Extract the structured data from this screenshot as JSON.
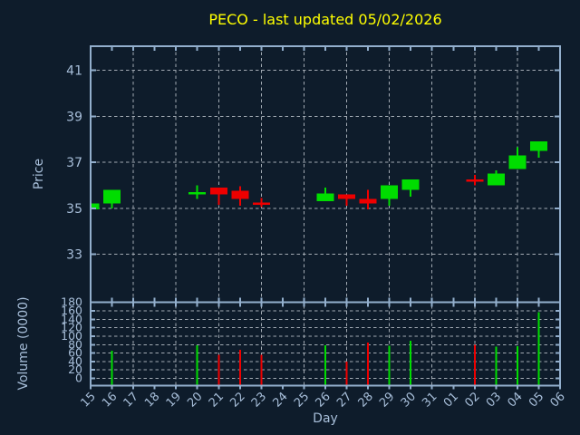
{
  "colors": {
    "background": "#0e1c2b",
    "border": "#93afcd",
    "grid": "#bcc3cb",
    "label": "#a7bed9",
    "title": "#ffff00",
    "up": "#00dd00",
    "down": "#ee0000"
  },
  "chart_data": [
    {
      "type": "candlestick",
      "panel": "price",
      "title": "PECO - last updated 05/02/2026",
      "xlabel": "Day",
      "ylabel": "Price",
      "ylim": [
        30.9,
        42.05
      ],
      "yticks": [
        33,
        35,
        37,
        39,
        41
      ],
      "grid": true,
      "legend": "none",
      "x_categories": [
        "15",
        "16",
        "17",
        "18",
        "19",
        "20",
        "21",
        "22",
        "23",
        "24",
        "25",
        "26",
        "27",
        "28",
        "29",
        "30",
        "31",
        "01",
        "02",
        "03",
        "04",
        "05",
        "06"
      ],
      "gridline_days": [
        "17",
        "19",
        "21",
        "23",
        "25",
        "27",
        "29",
        "31",
        "02",
        "04"
      ],
      "candles": [
        {
          "day": "15",
          "open": 34.95,
          "high": 35.2,
          "low": 34.95,
          "close": 35.2,
          "direction": "up"
        },
        {
          "day": "16",
          "open": 35.2,
          "high": 35.8,
          "low": 35.0,
          "close": 35.8,
          "direction": "up"
        },
        {
          "day": "20",
          "open": 35.65,
          "high": 36.0,
          "low": 35.4,
          "close": 35.65,
          "direction": "up"
        },
        {
          "day": "21",
          "open": 35.9,
          "high": 35.9,
          "low": 35.15,
          "close": 35.6,
          "direction": "down"
        },
        {
          "day": "22",
          "open": 35.75,
          "high": 35.95,
          "low": 35.1,
          "close": 35.4,
          "direction": "down"
        },
        {
          "day": "23",
          "open": 35.2,
          "high": 35.45,
          "low": 35.05,
          "close": 35.2,
          "direction": "down"
        },
        {
          "day": "26",
          "open": 35.3,
          "high": 35.9,
          "low": 35.3,
          "close": 35.65,
          "direction": "up"
        },
        {
          "day": "27",
          "open": 35.6,
          "high": 35.6,
          "low": 35.1,
          "close": 35.4,
          "direction": "down"
        },
        {
          "day": "28",
          "open": 35.4,
          "high": 35.8,
          "low": 34.95,
          "close": 35.2,
          "direction": "down"
        },
        {
          "day": "29",
          "open": 35.4,
          "high": 36.0,
          "low": 35.1,
          "close": 36.0,
          "direction": "up"
        },
        {
          "day": "30",
          "open": 35.8,
          "high": 36.25,
          "low": 35.5,
          "close": 36.25,
          "direction": "up"
        },
        {
          "day": "02",
          "open": 36.2,
          "high": 36.45,
          "low": 36.0,
          "close": 36.2,
          "direction": "down"
        },
        {
          "day": "03",
          "open": 36.0,
          "high": 36.65,
          "low": 36.0,
          "close": 36.5,
          "direction": "up"
        },
        {
          "day": "04",
          "open": 36.7,
          "high": 37.65,
          "low": 36.7,
          "close": 37.3,
          "direction": "up"
        },
        {
          "day": "05",
          "open": 37.5,
          "high": 37.9,
          "low": 37.2,
          "close": 37.9,
          "direction": "up"
        }
      ]
    },
    {
      "type": "bar",
      "panel": "volume",
      "ylabel": "Volume (0000)",
      "ylim": [
        0,
        180
      ],
      "yticks": [
        0,
        20,
        40,
        60,
        80,
        100,
        120,
        140,
        160,
        180
      ],
      "grid": true,
      "bars": [
        {
          "day": "16",
          "value": 66,
          "direction": "up"
        },
        {
          "day": "20",
          "value": 78,
          "direction": "up"
        },
        {
          "day": "21",
          "value": 56,
          "direction": "down"
        },
        {
          "day": "22",
          "value": 68,
          "direction": "down"
        },
        {
          "day": "23",
          "value": 56,
          "direction": "down"
        },
        {
          "day": "26",
          "value": 78,
          "direction": "up"
        },
        {
          "day": "27",
          "value": 40,
          "direction": "down"
        },
        {
          "day": "28",
          "value": 85,
          "direction": "down"
        },
        {
          "day": "29",
          "value": 77,
          "direction": "up"
        },
        {
          "day": "30",
          "value": 89,
          "direction": "up"
        },
        {
          "day": "02",
          "value": 79,
          "direction": "down"
        },
        {
          "day": "03",
          "value": 75,
          "direction": "up"
        },
        {
          "day": "04",
          "value": 76,
          "direction": "up"
        },
        {
          "day": "05",
          "value": 157,
          "direction": "up"
        }
      ]
    }
  ]
}
